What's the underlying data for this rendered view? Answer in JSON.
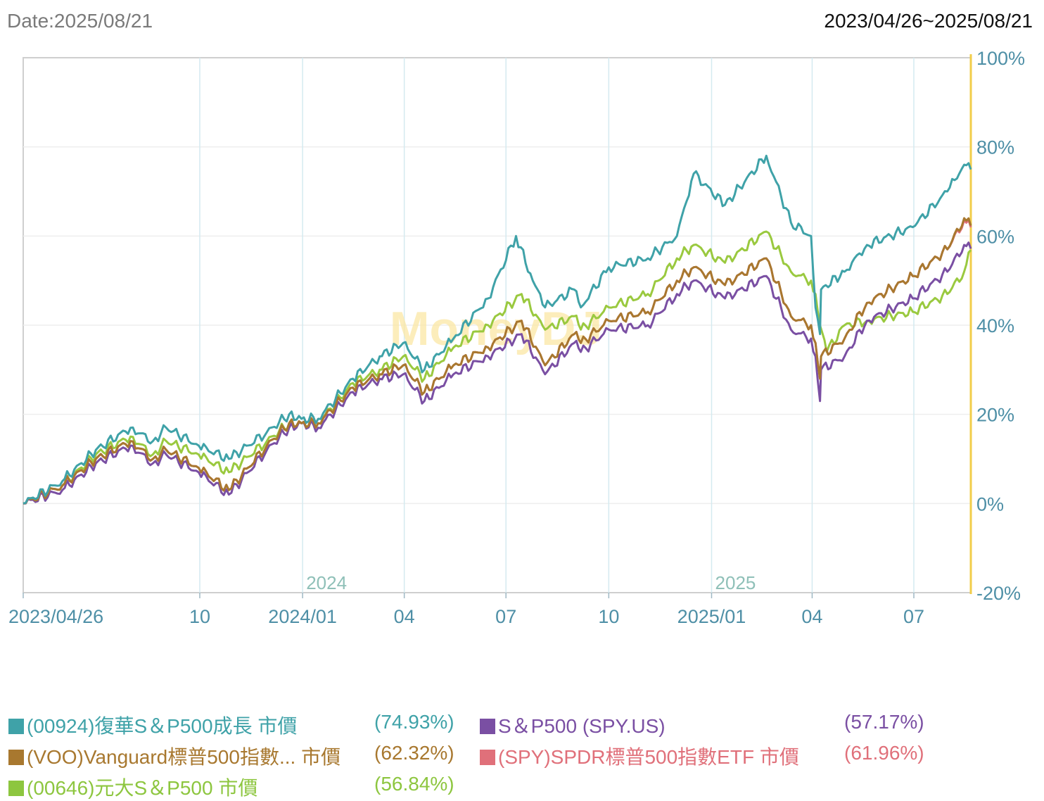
{
  "header": {
    "date_label": "Date:2025/08/21",
    "range_label": "2023/04/26~2025/08/21"
  },
  "watermark": "MoneyDJ",
  "chart_data": {
    "type": "line",
    "title": "",
    "x_range": [
      "2023/04/26",
      "2025/08/21"
    ],
    "x_ticks": [
      {
        "label": "2023/04/26",
        "date": "2023-04-26"
      },
      {
        "label": "10",
        "date": "2023-10-01"
      },
      {
        "label": "2024/01",
        "date": "2024-01-01"
      },
      {
        "label": "04",
        "date": "2024-04-01"
      },
      {
        "label": "07",
        "date": "2024-07-01"
      },
      {
        "label": "10",
        "date": "2024-10-01"
      },
      {
        "label": "2025/01",
        "date": "2025-01-01"
      },
      {
        "label": "04",
        "date": "2025-04-01"
      },
      {
        "label": "07",
        "date": "2025-07-01"
      }
    ],
    "year_labels": [
      {
        "label": "2024",
        "date": "2024-01-01"
      },
      {
        "label": "2025",
        "date": "2025-01-01"
      }
    ],
    "y_ticks": [
      "100%",
      "80%",
      "60%",
      "40%",
      "20%",
      "0%",
      "-20%"
    ],
    "y_tick_values": [
      100,
      80,
      60,
      40,
      20,
      0,
      -20
    ],
    "ylim": [
      -20,
      100
    ],
    "y_unit": "%",
    "series": [
      {
        "name": "(00924)復華S＆P500成長 市價",
        "color": "#3fa2a8",
        "final": "(74.93%)",
        "points": [
          [
            "2023-04-26",
            0
          ],
          [
            "2023-05-31",
            5
          ],
          [
            "2023-06-30",
            12
          ],
          [
            "2023-07-31",
            17
          ],
          [
            "2023-08-20",
            14
          ],
          [
            "2023-09-01",
            17
          ],
          [
            "2023-09-30",
            13
          ],
          [
            "2023-10-27",
            10
          ],
          [
            "2023-11-30",
            16
          ],
          [
            "2023-12-20",
            20
          ],
          [
            "2023-12-31",
            19
          ],
          [
            "2024-01-15",
            19
          ],
          [
            "2024-02-15",
            28
          ],
          [
            "2024-03-10",
            33
          ],
          [
            "2024-03-31",
            36
          ],
          [
            "2024-04-19",
            30
          ],
          [
            "2024-05-15",
            37
          ],
          [
            "2024-06-15",
            46
          ],
          [
            "2024-07-10",
            60
          ],
          [
            "2024-07-25",
            50
          ],
          [
            "2024-08-05",
            44
          ],
          [
            "2024-08-31",
            48
          ],
          [
            "2024-09-06",
            44
          ],
          [
            "2024-10-01",
            53
          ],
          [
            "2024-11-05",
            55
          ],
          [
            "2024-12-01",
            60
          ],
          [
            "2024-12-16",
            74
          ],
          [
            "2025-01-13",
            67
          ],
          [
            "2025-02-19",
            78
          ],
          [
            "2025-03-13",
            63
          ],
          [
            "2025-03-31",
            60
          ],
          [
            "2025-04-04",
            44
          ],
          [
            "2025-04-08",
            38
          ],
          [
            "2025-04-09",
            48
          ],
          [
            "2025-04-30",
            52
          ],
          [
            "2025-05-20",
            58
          ],
          [
            "2025-06-30",
            62
          ],
          [
            "2025-07-31",
            70
          ],
          [
            "2025-08-15",
            76
          ],
          [
            "2025-08-21",
            74.93
          ]
        ]
      },
      {
        "name": "S＆P500 (SPY.US)",
        "color": "#7a4fa3",
        "final": "(57.17%)",
        "points": [
          [
            "2023-04-26",
            0
          ],
          [
            "2023-05-31",
            3
          ],
          [
            "2023-06-30",
            9
          ],
          [
            "2023-07-31",
            13
          ],
          [
            "2023-08-20",
            9
          ],
          [
            "2023-09-01",
            11
          ],
          [
            "2023-09-30",
            7
          ],
          [
            "2023-10-27",
            2
          ],
          [
            "2023-11-30",
            12
          ],
          [
            "2023-12-20",
            17
          ],
          [
            "2023-12-31",
            18
          ],
          [
            "2024-01-15",
            17
          ],
          [
            "2024-02-15",
            25
          ],
          [
            "2024-03-10",
            28
          ],
          [
            "2024-03-31",
            29
          ],
          [
            "2024-04-19",
            23
          ],
          [
            "2024-05-15",
            29
          ],
          [
            "2024-06-15",
            33
          ],
          [
            "2024-07-15",
            38
          ],
          [
            "2024-08-05",
            29
          ],
          [
            "2024-08-31",
            36
          ],
          [
            "2024-09-06",
            34
          ],
          [
            "2024-10-01",
            39
          ],
          [
            "2024-11-05",
            40
          ],
          [
            "2024-12-01",
            47
          ],
          [
            "2024-12-16",
            50
          ],
          [
            "2025-01-13",
            46
          ],
          [
            "2025-02-19",
            51
          ],
          [
            "2025-03-13",
            39
          ],
          [
            "2025-03-31",
            37
          ],
          [
            "2025-04-04",
            33
          ],
          [
            "2025-04-08",
            23
          ],
          [
            "2025-04-09",
            30
          ],
          [
            "2025-04-30",
            33
          ],
          [
            "2025-05-20",
            41
          ],
          [
            "2025-06-30",
            46
          ],
          [
            "2025-07-31",
            52
          ],
          [
            "2025-08-15",
            58
          ],
          [
            "2025-08-21",
            57.17
          ]
        ]
      },
      {
        "name": "(VOO)Vanguard標普500指數... 市價",
        "color": "#a8782f",
        "final": "(62.32%)",
        "points": [
          [
            "2023-04-26",
            0
          ],
          [
            "2023-05-31",
            4
          ],
          [
            "2023-06-30",
            10
          ],
          [
            "2023-07-31",
            14
          ],
          [
            "2023-08-20",
            10
          ],
          [
            "2023-09-01",
            12
          ],
          [
            "2023-09-30",
            8
          ],
          [
            "2023-10-27",
            3
          ],
          [
            "2023-11-30",
            13
          ],
          [
            "2023-12-20",
            18
          ],
          [
            "2023-12-31",
            18
          ],
          [
            "2024-01-15",
            18
          ],
          [
            "2024-02-15",
            26
          ],
          [
            "2024-03-10",
            29
          ],
          [
            "2024-03-31",
            31
          ],
          [
            "2024-04-19",
            25
          ],
          [
            "2024-05-15",
            31
          ],
          [
            "2024-06-15",
            35
          ],
          [
            "2024-07-15",
            41
          ],
          [
            "2024-08-05",
            31
          ],
          [
            "2024-08-31",
            38
          ],
          [
            "2024-09-06",
            36
          ],
          [
            "2024-10-01",
            41
          ],
          [
            "2024-11-05",
            43
          ],
          [
            "2024-12-01",
            50
          ],
          [
            "2024-12-16",
            53
          ],
          [
            "2025-01-13",
            49
          ],
          [
            "2025-02-19",
            55
          ],
          [
            "2025-03-13",
            42
          ],
          [
            "2025-03-31",
            40
          ],
          [
            "2025-04-04",
            36
          ],
          [
            "2025-04-08",
            28
          ],
          [
            "2025-04-09",
            33
          ],
          [
            "2025-04-30",
            37
          ],
          [
            "2025-05-20",
            45
          ],
          [
            "2025-06-30",
            51
          ],
          [
            "2025-07-31",
            57
          ],
          [
            "2025-08-15",
            64
          ],
          [
            "2025-08-21",
            62.32
          ]
        ]
      },
      {
        "name": "(SPY)SPDR標普500指數ETF 市價",
        "color": "#e0707a",
        "final": "(61.96%)",
        "points": [
          [
            "2023-04-26",
            0
          ],
          [
            "2023-05-31",
            4
          ],
          [
            "2023-06-30",
            10
          ],
          [
            "2023-07-31",
            14
          ],
          [
            "2023-08-20",
            10
          ],
          [
            "2023-09-01",
            12
          ],
          [
            "2023-09-30",
            8
          ],
          [
            "2023-10-27",
            3
          ],
          [
            "2023-11-30",
            13
          ],
          [
            "2023-12-20",
            18
          ],
          [
            "2023-12-31",
            18
          ],
          [
            "2024-01-15",
            18
          ],
          [
            "2024-02-15",
            26
          ],
          [
            "2024-03-10",
            29
          ],
          [
            "2024-03-31",
            31
          ],
          [
            "2024-04-19",
            25
          ],
          [
            "2024-05-15",
            31
          ],
          [
            "2024-06-15",
            35
          ],
          [
            "2024-07-15",
            41
          ],
          [
            "2024-08-05",
            31
          ],
          [
            "2024-08-31",
            38
          ],
          [
            "2024-09-06",
            36
          ],
          [
            "2024-10-01",
            41
          ],
          [
            "2024-11-05",
            43
          ],
          [
            "2024-12-01",
            50
          ],
          [
            "2024-12-16",
            53
          ],
          [
            "2025-01-13",
            49
          ],
          [
            "2025-02-19",
            55
          ],
          [
            "2025-03-13",
            42
          ],
          [
            "2025-03-31",
            40
          ],
          [
            "2025-04-04",
            36
          ],
          [
            "2025-04-08",
            28
          ],
          [
            "2025-04-09",
            33
          ],
          [
            "2025-04-30",
            37
          ],
          [
            "2025-05-20",
            45
          ],
          [
            "2025-06-30",
            51
          ],
          [
            "2025-07-31",
            57
          ],
          [
            "2025-08-15",
            63.5
          ],
          [
            "2025-08-21",
            61.96
          ]
        ]
      },
      {
        "name": "(00646)元大S＆P500 市價",
        "color": "#9ac93f",
        "final": "(56.84%)",
        "points": [
          [
            "2023-04-26",
            0
          ],
          [
            "2023-05-31",
            4
          ],
          [
            "2023-06-30",
            11
          ],
          [
            "2023-07-31",
            15
          ],
          [
            "2023-08-20",
            11
          ],
          [
            "2023-09-01",
            14
          ],
          [
            "2023-09-30",
            11
          ],
          [
            "2023-10-27",
            7
          ],
          [
            "2023-11-30",
            14
          ],
          [
            "2023-12-20",
            18
          ],
          [
            "2023-12-31",
            18
          ],
          [
            "2024-01-15",
            18
          ],
          [
            "2024-02-15",
            27
          ],
          [
            "2024-03-10",
            30
          ],
          [
            "2024-03-31",
            33
          ],
          [
            "2024-04-19",
            28
          ],
          [
            "2024-05-15",
            35
          ],
          [
            "2024-06-15",
            40
          ],
          [
            "2024-07-15",
            47
          ],
          [
            "2024-08-05",
            39
          ],
          [
            "2024-08-31",
            42
          ],
          [
            "2024-09-06",
            39
          ],
          [
            "2024-10-01",
            44
          ],
          [
            "2024-11-05",
            47
          ],
          [
            "2024-12-01",
            55
          ],
          [
            "2024-12-16",
            58
          ],
          [
            "2025-01-13",
            54
          ],
          [
            "2025-02-19",
            61
          ],
          [
            "2025-03-13",
            52
          ],
          [
            "2025-03-31",
            50
          ],
          [
            "2025-04-04",
            47
          ],
          [
            "2025-04-08",
            40
          ],
          [
            "2025-04-14",
            34
          ],
          [
            "2025-04-30",
            40
          ],
          [
            "2025-05-20",
            41
          ],
          [
            "2025-06-30",
            43
          ],
          [
            "2025-07-31",
            47
          ],
          [
            "2025-08-15",
            52
          ],
          [
            "2025-08-21",
            56.84
          ]
        ]
      }
    ],
    "legend": [
      {
        "label": "(00924)復華S＆P500成長 市價",
        "value": "(74.93%)",
        "color": "#3fa2a8",
        "text_color": "#3fa2a8"
      },
      {
        "label": "S＆P500 (SPY.US)",
        "value": "(57.17%)",
        "color": "#7a4fa3",
        "text_color": "#7a4fa3"
      },
      {
        "label": "(VOO)Vanguard標普500指數... 市價",
        "value": "(62.32%)",
        "color": "#a8782f",
        "text_color": "#a8782f"
      },
      {
        "label": "(SPY)SPDR標普500指數ETF 市價",
        "value": "(61.96%)",
        "color": "#e0707a",
        "text_color": "#e0707a"
      },
      {
        "label": "(00646)元大S＆P500 市價",
        "value": "(56.84%)",
        "color": "#8dc63f",
        "text_color": "#8dc63f"
      }
    ]
  }
}
